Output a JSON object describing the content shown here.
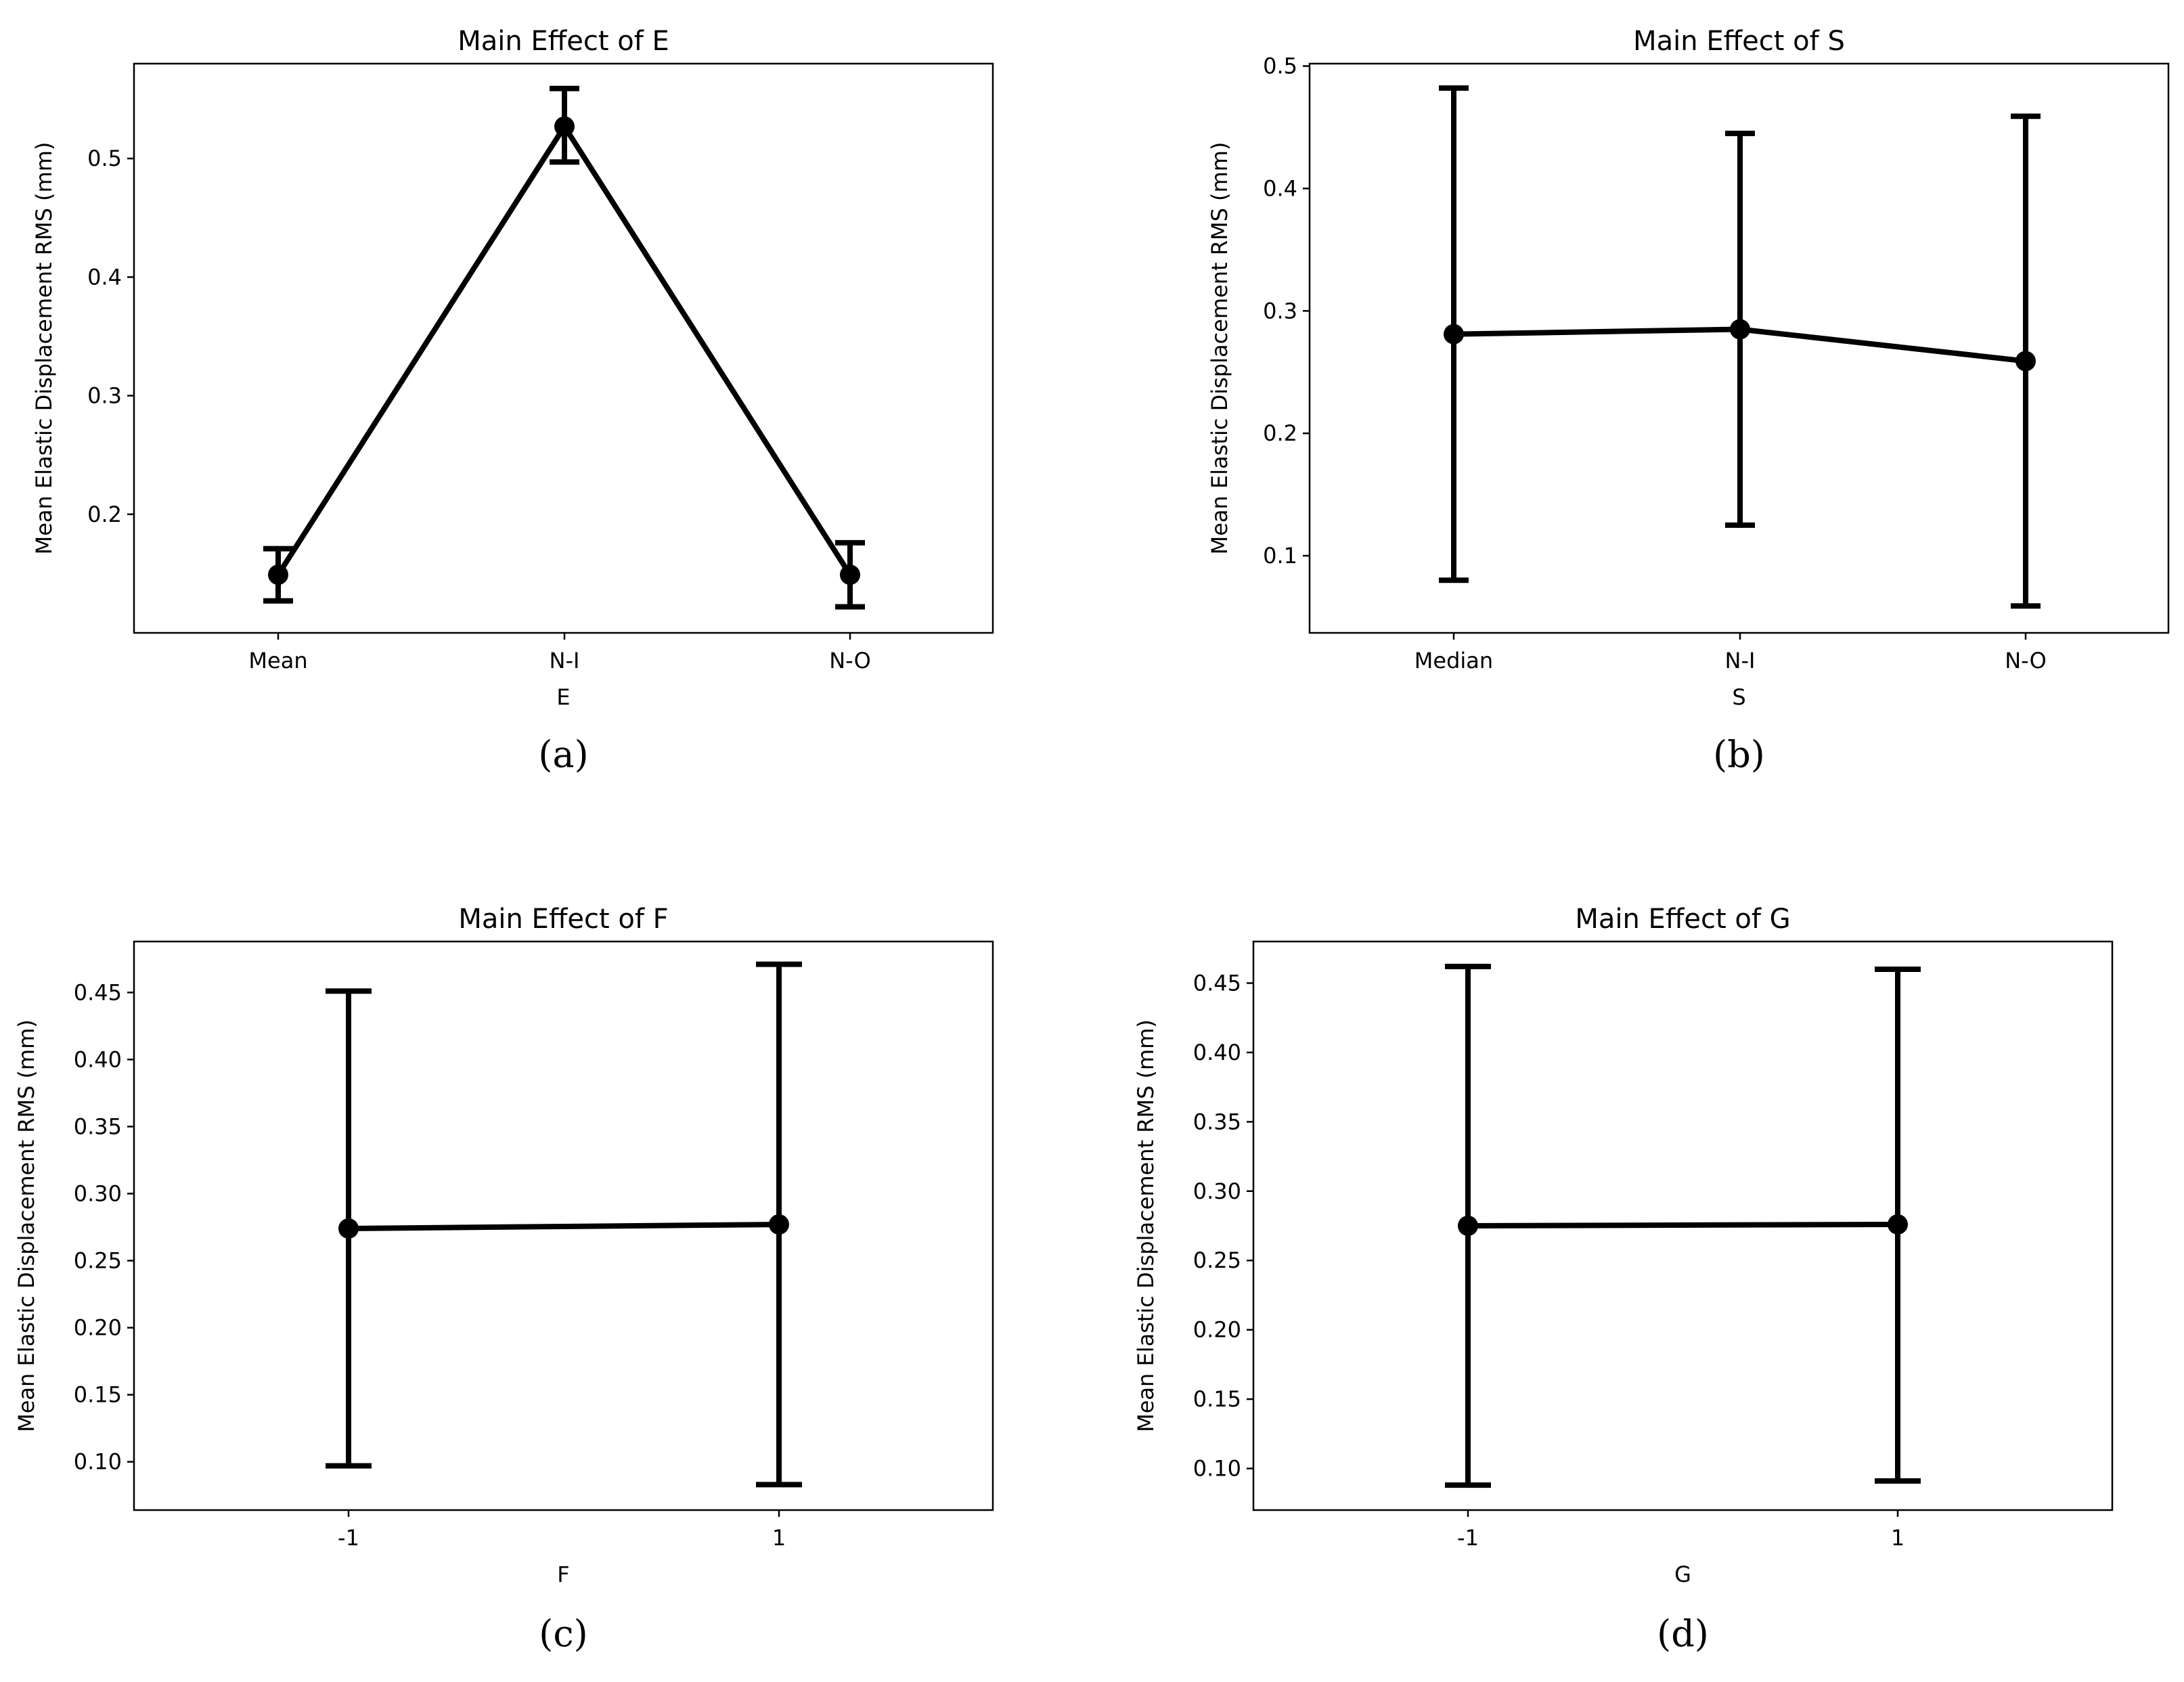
{
  "chart_data": [
    {
      "type": "line",
      "subplot_label": "(a)",
      "title": "Main Effect of E",
      "xlabel": "E",
      "ylabel": "Mean Elastic Displacement RMS (mm)",
      "categories": [
        "Mean",
        "N-I",
        "N-O"
      ],
      "values": [
        0.149,
        0.527,
        0.149
      ],
      "error_low": [
        0.127,
        0.497,
        0.122
      ],
      "error_high": [
        0.171,
        0.559,
        0.176
      ],
      "ylim": [
        0.1,
        0.58
      ],
      "yticks": [
        0.2,
        0.3,
        0.4,
        0.5
      ],
      "ytick_labels": [
        "0.2",
        "0.3",
        "0.4",
        "0.5"
      ],
      "color": "#000000",
      "grid": false
    },
    {
      "type": "line",
      "subplot_label": "(b)",
      "title": "Main Effect of S",
      "xlabel": "S",
      "ylabel": "Mean Elastic Displacement RMS (mm)",
      "categories": [
        "Median",
        "N-I",
        "N-O"
      ],
      "values": [
        0.281,
        0.285,
        0.259
      ],
      "error_low": [
        0.08,
        0.125,
        0.059
      ],
      "error_high": [
        0.482,
        0.445,
        0.459
      ],
      "ylim": [
        0.037,
        0.502
      ],
      "yticks": [
        0.1,
        0.2,
        0.3,
        0.4,
        0.5
      ],
      "ytick_labels": [
        "0.1",
        "0.2",
        "0.3",
        "0.4",
        "0.5"
      ],
      "color": "#000000",
      "grid": false
    },
    {
      "type": "line",
      "subplot_label": "(c)",
      "title": "Main Effect of F",
      "xlabel": "F",
      "ylabel": "Mean Elastic Displacement RMS (mm)",
      "categories": [
        "-1",
        "1"
      ],
      "values": [
        0.274,
        0.277
      ],
      "error_low": [
        0.097,
        0.083
      ],
      "error_high": [
        0.451,
        0.471
      ],
      "ylim": [
        0.064,
        0.488
      ],
      "yticks": [
        0.1,
        0.15,
        0.2,
        0.25,
        0.3,
        0.35,
        0.4,
        0.45
      ],
      "ytick_labels": [
        "0.10",
        "0.15",
        "0.20",
        "0.25",
        "0.30",
        "0.35",
        "0.40",
        "0.45"
      ],
      "color": "#000000",
      "grid": false
    },
    {
      "type": "line",
      "subplot_label": "(d)",
      "title": "Main Effect of G",
      "xlabel": "G",
      "ylabel": "Mean Elastic Displacement RMS (mm)",
      "categories": [
        "-1",
        "1"
      ],
      "values": [
        0.275,
        0.276
      ],
      "error_low": [
        0.088,
        0.091
      ],
      "error_high": [
        0.462,
        0.46
      ],
      "ylim": [
        0.07,
        0.48
      ],
      "yticks": [
        0.1,
        0.15,
        0.2,
        0.25,
        0.3,
        0.35,
        0.4,
        0.45
      ],
      "ytick_labels": [
        "0.10",
        "0.15",
        "0.20",
        "0.25",
        "0.30",
        "0.35",
        "0.40",
        "0.45"
      ],
      "color": "#000000",
      "grid": false
    }
  ]
}
